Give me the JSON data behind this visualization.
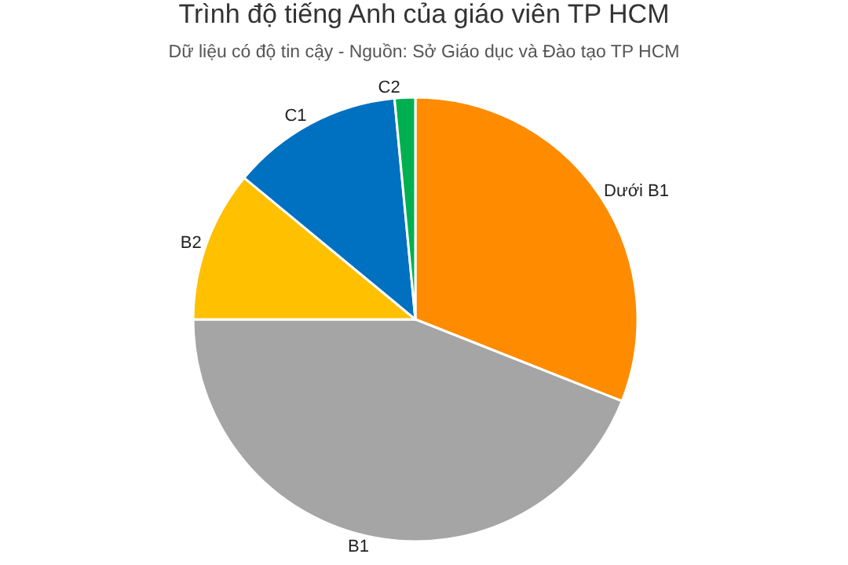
{
  "chart_data": {
    "type": "pie",
    "title": "Trình độ tiếng Anh của giáo viên TP HCM",
    "subtitle": "Dữ liệu có độ tin cậy - Nguồn: Sở Giáo dục và Đào tạo TP HCM",
    "categories": [
      "Dưới B1",
      "B1",
      "B2",
      "C1",
      "C2"
    ],
    "values": [
      31,
      44,
      11,
      12.5,
      1.5
    ],
    "colors": [
      "#ff8c00",
      "#a5a5a5",
      "#ffc000",
      "#0070c0",
      "#00b050"
    ],
    "legend": false
  }
}
